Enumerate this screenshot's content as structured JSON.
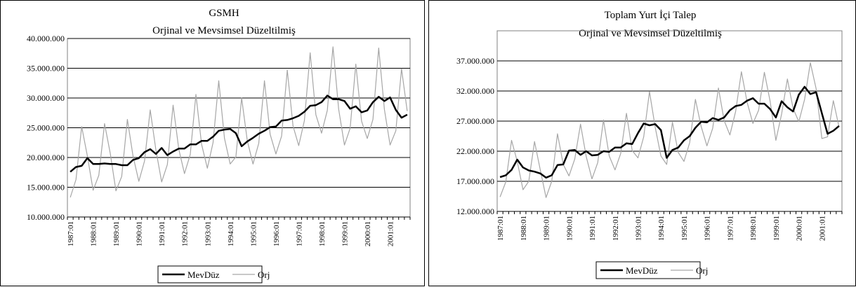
{
  "chart_data": [
    {
      "type": "line",
      "title": "GSMH",
      "subtitle": "Orjinal ve Mevsimsel Düzeltilmiş",
      "ylim": [
        10000000,
        40000000
      ],
      "yticks": [
        "10.000.000",
        "15.000.000",
        "20.000.000",
        "25.000.000",
        "30.000.000",
        "35.000.000",
        "40.000.000"
      ],
      "ytick_values": [
        10000000,
        15000000,
        20000000,
        25000000,
        30000000,
        35000000,
        40000000
      ],
      "grid": true,
      "legend": "bottom",
      "x_start": "1987:01",
      "xticks": [
        "1987:01",
        "1988:01",
        "1989:01",
        "1990:01",
        "1991:01",
        "1992:01",
        "1993:01",
        "1994:01",
        "1995:01",
        "1996:01",
        "1997:01",
        "1998:01",
        "1999:01",
        "2000:01",
        "2001:01"
      ],
      "series": [
        {
          "name": "MevDüz",
          "color": "#000000",
          "values": [
            17.6,
            18.4,
            18.6,
            19.9,
            18.9,
            18.9,
            19.0,
            18.9,
            18.9,
            18.7,
            18.7,
            19.6,
            19.9,
            20.9,
            21.4,
            20.6,
            21.6,
            20.4,
            21.0,
            21.5,
            21.5,
            22.2,
            22.2,
            22.8,
            22.8,
            23.5,
            24.5,
            24.7,
            24.8,
            24.1,
            21.9,
            22.7,
            23.3,
            24.0,
            24.5,
            25.1,
            25.2,
            26.2,
            26.3,
            26.6,
            27.0,
            27.7,
            28.7,
            28.8,
            29.3,
            30.4,
            29.8,
            29.8,
            29.5,
            28.2,
            28.6,
            27.6,
            27.9,
            29.3,
            30.2,
            29.5,
            30.1,
            28.0,
            26.7,
            27.2
          ],
          "scale": 1000000
        },
        {
          "name": "Orj",
          "color": "#a6a6a6",
          "values": [
            13.3,
            16.3,
            25.2,
            20.2,
            14.5,
            17.0,
            25.7,
            20.7,
            14.4,
            16.8,
            26.4,
            20.2,
            16.0,
            19.4,
            28.0,
            21.2,
            15.9,
            18.8,
            28.8,
            21.4,
            17.3,
            20.5,
            30.6,
            22.2,
            18.2,
            22.5,
            32.9,
            23.2,
            18.9,
            20.1,
            30.0,
            22.8,
            18.9,
            22.4,
            32.9,
            23.9,
            20.6,
            23.6,
            34.7,
            25.3,
            22.0,
            26.2,
            37.6,
            27.2,
            24.1,
            27.9,
            38.6,
            28.1,
            22.1,
            24.9,
            35.7,
            26.1,
            23.2,
            26.4,
            38.4,
            28.1,
            22.1,
            24.5,
            34.9,
            27.8
          ],
          "scale": 1000000
        }
      ]
    },
    {
      "type": "line",
      "title": "Toplam Yurt İçi Talep",
      "subtitle": "Orjinal ve Mevsimsel Düzeltilmiş",
      "ylim": [
        12000000,
        42000000
      ],
      "yticks": [
        "12.000.000",
        "17.000.000",
        "22.000.000",
        "27.000.000",
        "32.000.000",
        "37.000.000"
      ],
      "ytick_values": [
        12000000,
        17000000,
        22000000,
        27000000,
        32000000,
        37000000
      ],
      "grid": true,
      "legend": "bottom",
      "x_start": "1987:01",
      "xticks": [
        "1987:01",
        "1988:01",
        "1989:01",
        "1990:01",
        "1991:01",
        "1992:01",
        "1993:01",
        "1994:01",
        "1995:01",
        "1996:01",
        "1997:01",
        "1998:01",
        "1999:01",
        "2000:01",
        "2001:01"
      ],
      "series": [
        {
          "name": "MevDüz",
          "color": "#000000",
          "values": [
            17.7,
            18.0,
            18.9,
            20.6,
            19.3,
            18.8,
            18.6,
            18.3,
            17.6,
            18.0,
            19.7,
            19.8,
            22.1,
            22.2,
            21.4,
            22.0,
            21.3,
            21.4,
            22.0,
            21.9,
            22.6,
            22.6,
            23.3,
            23.2,
            25.0,
            26.6,
            26.3,
            26.5,
            25.5,
            20.9,
            22.2,
            22.6,
            23.8,
            24.5,
            25.9,
            26.9,
            26.8,
            27.5,
            27.2,
            27.6,
            28.8,
            29.5,
            29.7,
            30.4,
            30.8,
            29.9,
            29.9,
            29.0,
            27.6,
            30.3,
            29.3,
            28.6,
            31.4,
            32.7,
            31.5,
            31.8,
            28.3,
            24.9,
            25.4,
            26.2
          ],
          "scale": 1000000
        },
        {
          "name": "Orj",
          "color": "#a6a6a6",
          "values": [
            14.4,
            16.9,
            23.8,
            20.3,
            15.6,
            17.0,
            23.6,
            18.9,
            14.3,
            17.0,
            24.9,
            19.8,
            17.9,
            20.7,
            26.5,
            21.1,
            17.4,
            20.1,
            27.2,
            21.2,
            18.9,
            21.6,
            28.3,
            22.1,
            20.9,
            24.4,
            31.9,
            26.0,
            21.2,
            19.8,
            26.8,
            21.8,
            20.3,
            23.4,
            30.6,
            26.1,
            22.9,
            25.8,
            32.5,
            27.1,
            24.7,
            28.6,
            35.2,
            30.1,
            26.6,
            28.8,
            35.1,
            30.3,
            23.8,
            28.2,
            34.0,
            29.1,
            26.9,
            30.6,
            36.7,
            32.4,
            24.1,
            24.4,
            30.4,
            26.0
          ],
          "scale": 1000000
        }
      ]
    }
  ]
}
